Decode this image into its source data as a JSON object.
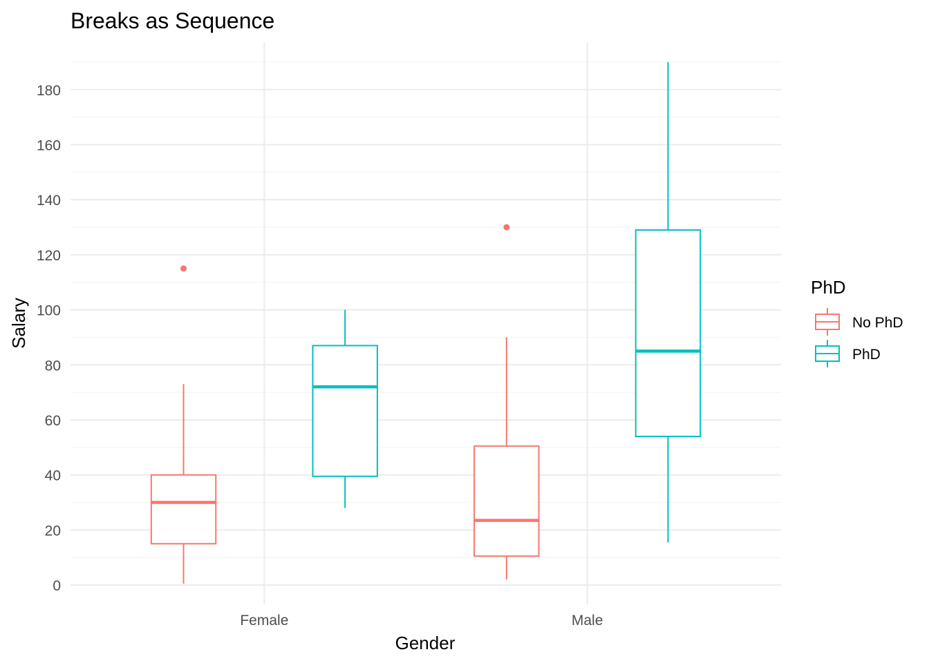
{
  "chart_data": {
    "type": "boxplot",
    "title": "Breaks as Sequence",
    "xlabel": "Gender",
    "ylabel": "Salary",
    "categories": [
      "Female",
      "Male"
    ],
    "ylim": [
      -7,
      197
    ],
    "yticks": [
      0,
      20,
      40,
      60,
      80,
      100,
      120,
      140,
      160,
      180
    ],
    "grid": true,
    "legend": {
      "title": "PhD",
      "position": "right"
    },
    "series": [
      {
        "name": "No PhD",
        "color": "#F8766D",
        "boxes": [
          {
            "category": "Female",
            "lower_whisker": 0.5,
            "q1": 15,
            "median": 30,
            "q3": 40,
            "upper_whisker": 73,
            "outliers": [
              115
            ]
          },
          {
            "category": "Male",
            "lower_whisker": 2,
            "q1": 10.5,
            "median": 23.5,
            "q3": 50.5,
            "upper_whisker": 90,
            "outliers": [
              130
            ]
          }
        ]
      },
      {
        "name": "PhD",
        "color": "#00BFC4",
        "boxes": [
          {
            "category": "Female",
            "lower_whisker": 28,
            "q1": 39.5,
            "median": 72,
            "q3": 87,
            "upper_whisker": 100,
            "outliers": []
          },
          {
            "category": "Male",
            "lower_whisker": 15.5,
            "q1": 54,
            "median": 85,
            "q3": 129,
            "upper_whisker": 190,
            "outliers": []
          }
        ]
      }
    ]
  }
}
